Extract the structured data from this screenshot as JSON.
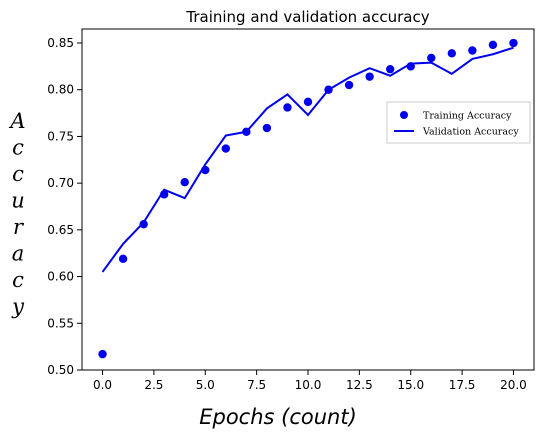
{
  "chart_data": {
    "type": "line",
    "title": "Training and validation accuracy",
    "xlabel": "Epochs (count)",
    "ylabel": "Accuracy",
    "xlim": [
      -1,
      21
    ],
    "ylim": [
      0.5,
      0.865
    ],
    "x_ticks": [
      0.0,
      2.5,
      5.0,
      7.5,
      10.0,
      12.5,
      15.0,
      17.5,
      20.0
    ],
    "x_tick_labels": [
      "0.0",
      "2.5",
      "5.0",
      "7.5",
      "10.0",
      "12.5",
      "15.0",
      "17.5",
      "20.0"
    ],
    "y_ticks": [
      0.5,
      0.55,
      0.6,
      0.65,
      0.7,
      0.75,
      0.8,
      0.85
    ],
    "y_tick_labels": [
      "0.50",
      "0.55",
      "0.60",
      "0.65",
      "0.70",
      "0.75",
      "0.80",
      "0.85"
    ],
    "grid": false,
    "legend_position": "right",
    "x": [
      0,
      1,
      2,
      3,
      4,
      5,
      6,
      7,
      8,
      9,
      10,
      11,
      12,
      13,
      14,
      15,
      16,
      17,
      18,
      19,
      20
    ],
    "series": [
      {
        "name": "Training Accuracy",
        "style": "scatter",
        "color": "#0000ee",
        "values": [
          0.517,
          0.619,
          0.656,
          0.688,
          0.701,
          0.714,
          0.737,
          0.755,
          0.759,
          0.781,
          0.787,
          0.8,
          0.805,
          0.814,
          0.822,
          0.825,
          0.834,
          0.839,
          0.842,
          0.848,
          0.85
        ]
      },
      {
        "name": "Validation Accuracy",
        "style": "line",
        "color": "#0000ee",
        "values": [
          0.605,
          0.635,
          0.658,
          0.693,
          0.684,
          0.72,
          0.751,
          0.755,
          0.78,
          0.795,
          0.773,
          0.8,
          0.813,
          0.823,
          0.815,
          0.828,
          0.829,
          0.817,
          0.833,
          0.838,
          0.845
        ]
      }
    ]
  }
}
